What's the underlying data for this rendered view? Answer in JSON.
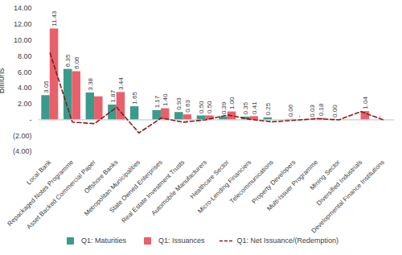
{
  "chart_data": {
    "type": "bar",
    "categories": [
      "Local Bank",
      "Repackaged Notes Programme",
      "Asset Backed Commercial Paper",
      "Offshore Banks",
      "Metropolitan Municipalities",
      "State Owned Enterprises",
      "Real Estate Investment Trusts",
      "Automobile Manufacturers",
      "Healthcare Sector",
      "Micro-Lending Financiers",
      "Telecommunications",
      "Property Developers",
      "Multi-Issuer Programme",
      "Mining Sector",
      "Diversified Industrials",
      "Developmental Finance Institutions"
    ],
    "series": [
      {
        "name": "Q1: Maturities",
        "type": "bar",
        "color": "#3a9b8c",
        "values": [
          3.05,
          6.35,
          3.38,
          1.87,
          1.65,
          1.17,
          0.93,
          0.5,
          0.39,
          0.35,
          0.25,
          0.06,
          0.03,
          0.0,
          0,
          0
        ],
        "value_labels": [
          "3.05",
          "6.35",
          "3.38",
          "1.87",
          "1.65",
          "1.17",
          "0.93",
          "0.50",
          "0.39",
          "0.35",
          "0.25",
          "0.06",
          "0.03",
          "0.00",
          null,
          "-"
        ]
      },
      {
        "name": "Q1: Issuances",
        "type": "bar",
        "color": "#e8606a",
        "values": [
          11.43,
          6.06,
          2.9,
          3.44,
          0,
          1.4,
          0.63,
          0.5,
          1.0,
          0.41,
          0,
          0,
          0.18,
          0,
          1.04,
          0
        ],
        "value_labels": [
          "11.43",
          "6.06",
          null,
          "3.44",
          null,
          "1.40",
          "0.63",
          "0.50",
          "1.00",
          "0.41",
          null,
          "-",
          "0.18",
          null,
          "1.04",
          null
        ]
      },
      {
        "name": "Q1: Net Issuance/(Redemption)",
        "type": "line",
        "color": "#8b1a1a",
        "line_style": "dashed",
        "values": [
          8.38,
          -0.29,
          -0.48,
          1.57,
          -1.65,
          0.23,
          -0.3,
          0,
          0.61,
          0.06,
          -0.25,
          -0.06,
          0.15,
          0,
          1.04,
          0
        ]
      }
    ],
    "ylabel": "Billions",
    "ylim": [
      -4,
      14
    ],
    "yticks": [
      {
        "value": -4,
        "label": "(4.00)"
      },
      {
        "value": -2,
        "label": "(2.00)"
      },
      {
        "value": 0,
        "label": "-"
      },
      {
        "value": 2,
        "label": "2.00"
      },
      {
        "value": 4,
        "label": "4.00"
      },
      {
        "value": 6,
        "label": "6.00"
      },
      {
        "value": 8,
        "label": "8.00"
      },
      {
        "value": 10,
        "label": "10.00"
      },
      {
        "value": 12,
        "label": "12.00"
      },
      {
        "value": 14,
        "label": "14.00"
      }
    ],
    "data_labels": true,
    "grid": false,
    "legend": "bottom"
  }
}
